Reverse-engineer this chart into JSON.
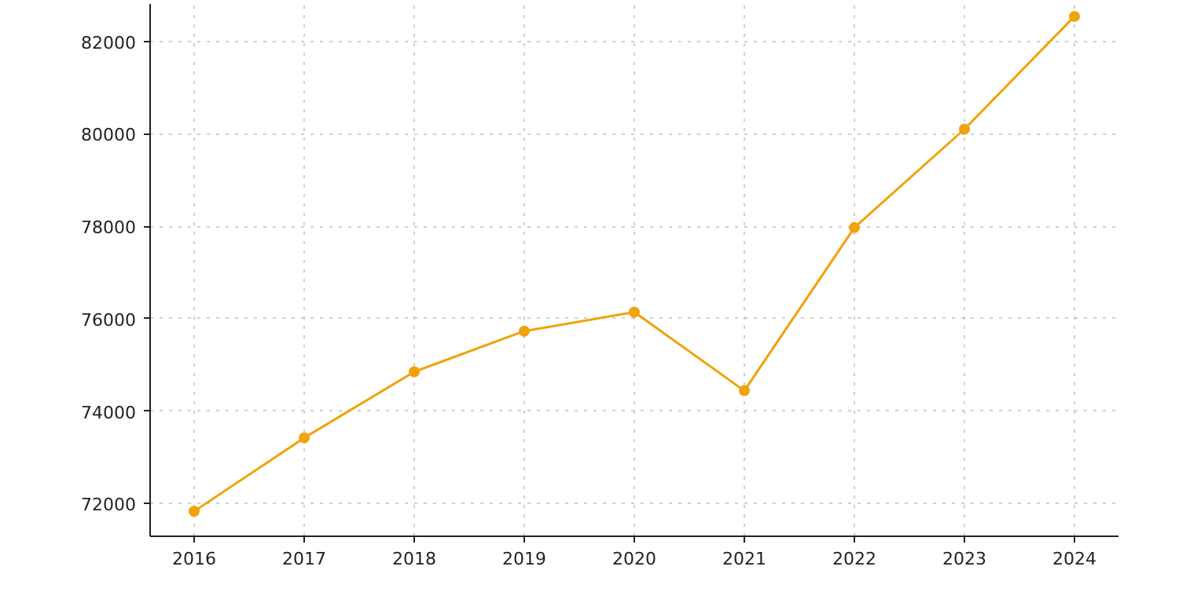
{
  "chart_data": {
    "type": "line",
    "x": [
      2016,
      2017,
      2018,
      2019,
      2020,
      2021,
      2022,
      2023,
      2024
    ],
    "series": [
      {
        "color": "#f0a30a",
        "values": [
          71830,
          73420,
          74850,
          75730,
          76140,
          74440,
          77970,
          80100,
          82540
        ]
      }
    ],
    "xlim": [
      2015.6,
      2024.4
    ],
    "ylim": [
      71290,
      82810
    ],
    "xticks": [
      2016,
      2017,
      2018,
      2019,
      2020,
      2021,
      2022,
      2023,
      2024
    ],
    "yticks": [
      72000,
      74000,
      76000,
      78000,
      80000,
      82000
    ],
    "grid": true,
    "marker": "circle"
  }
}
